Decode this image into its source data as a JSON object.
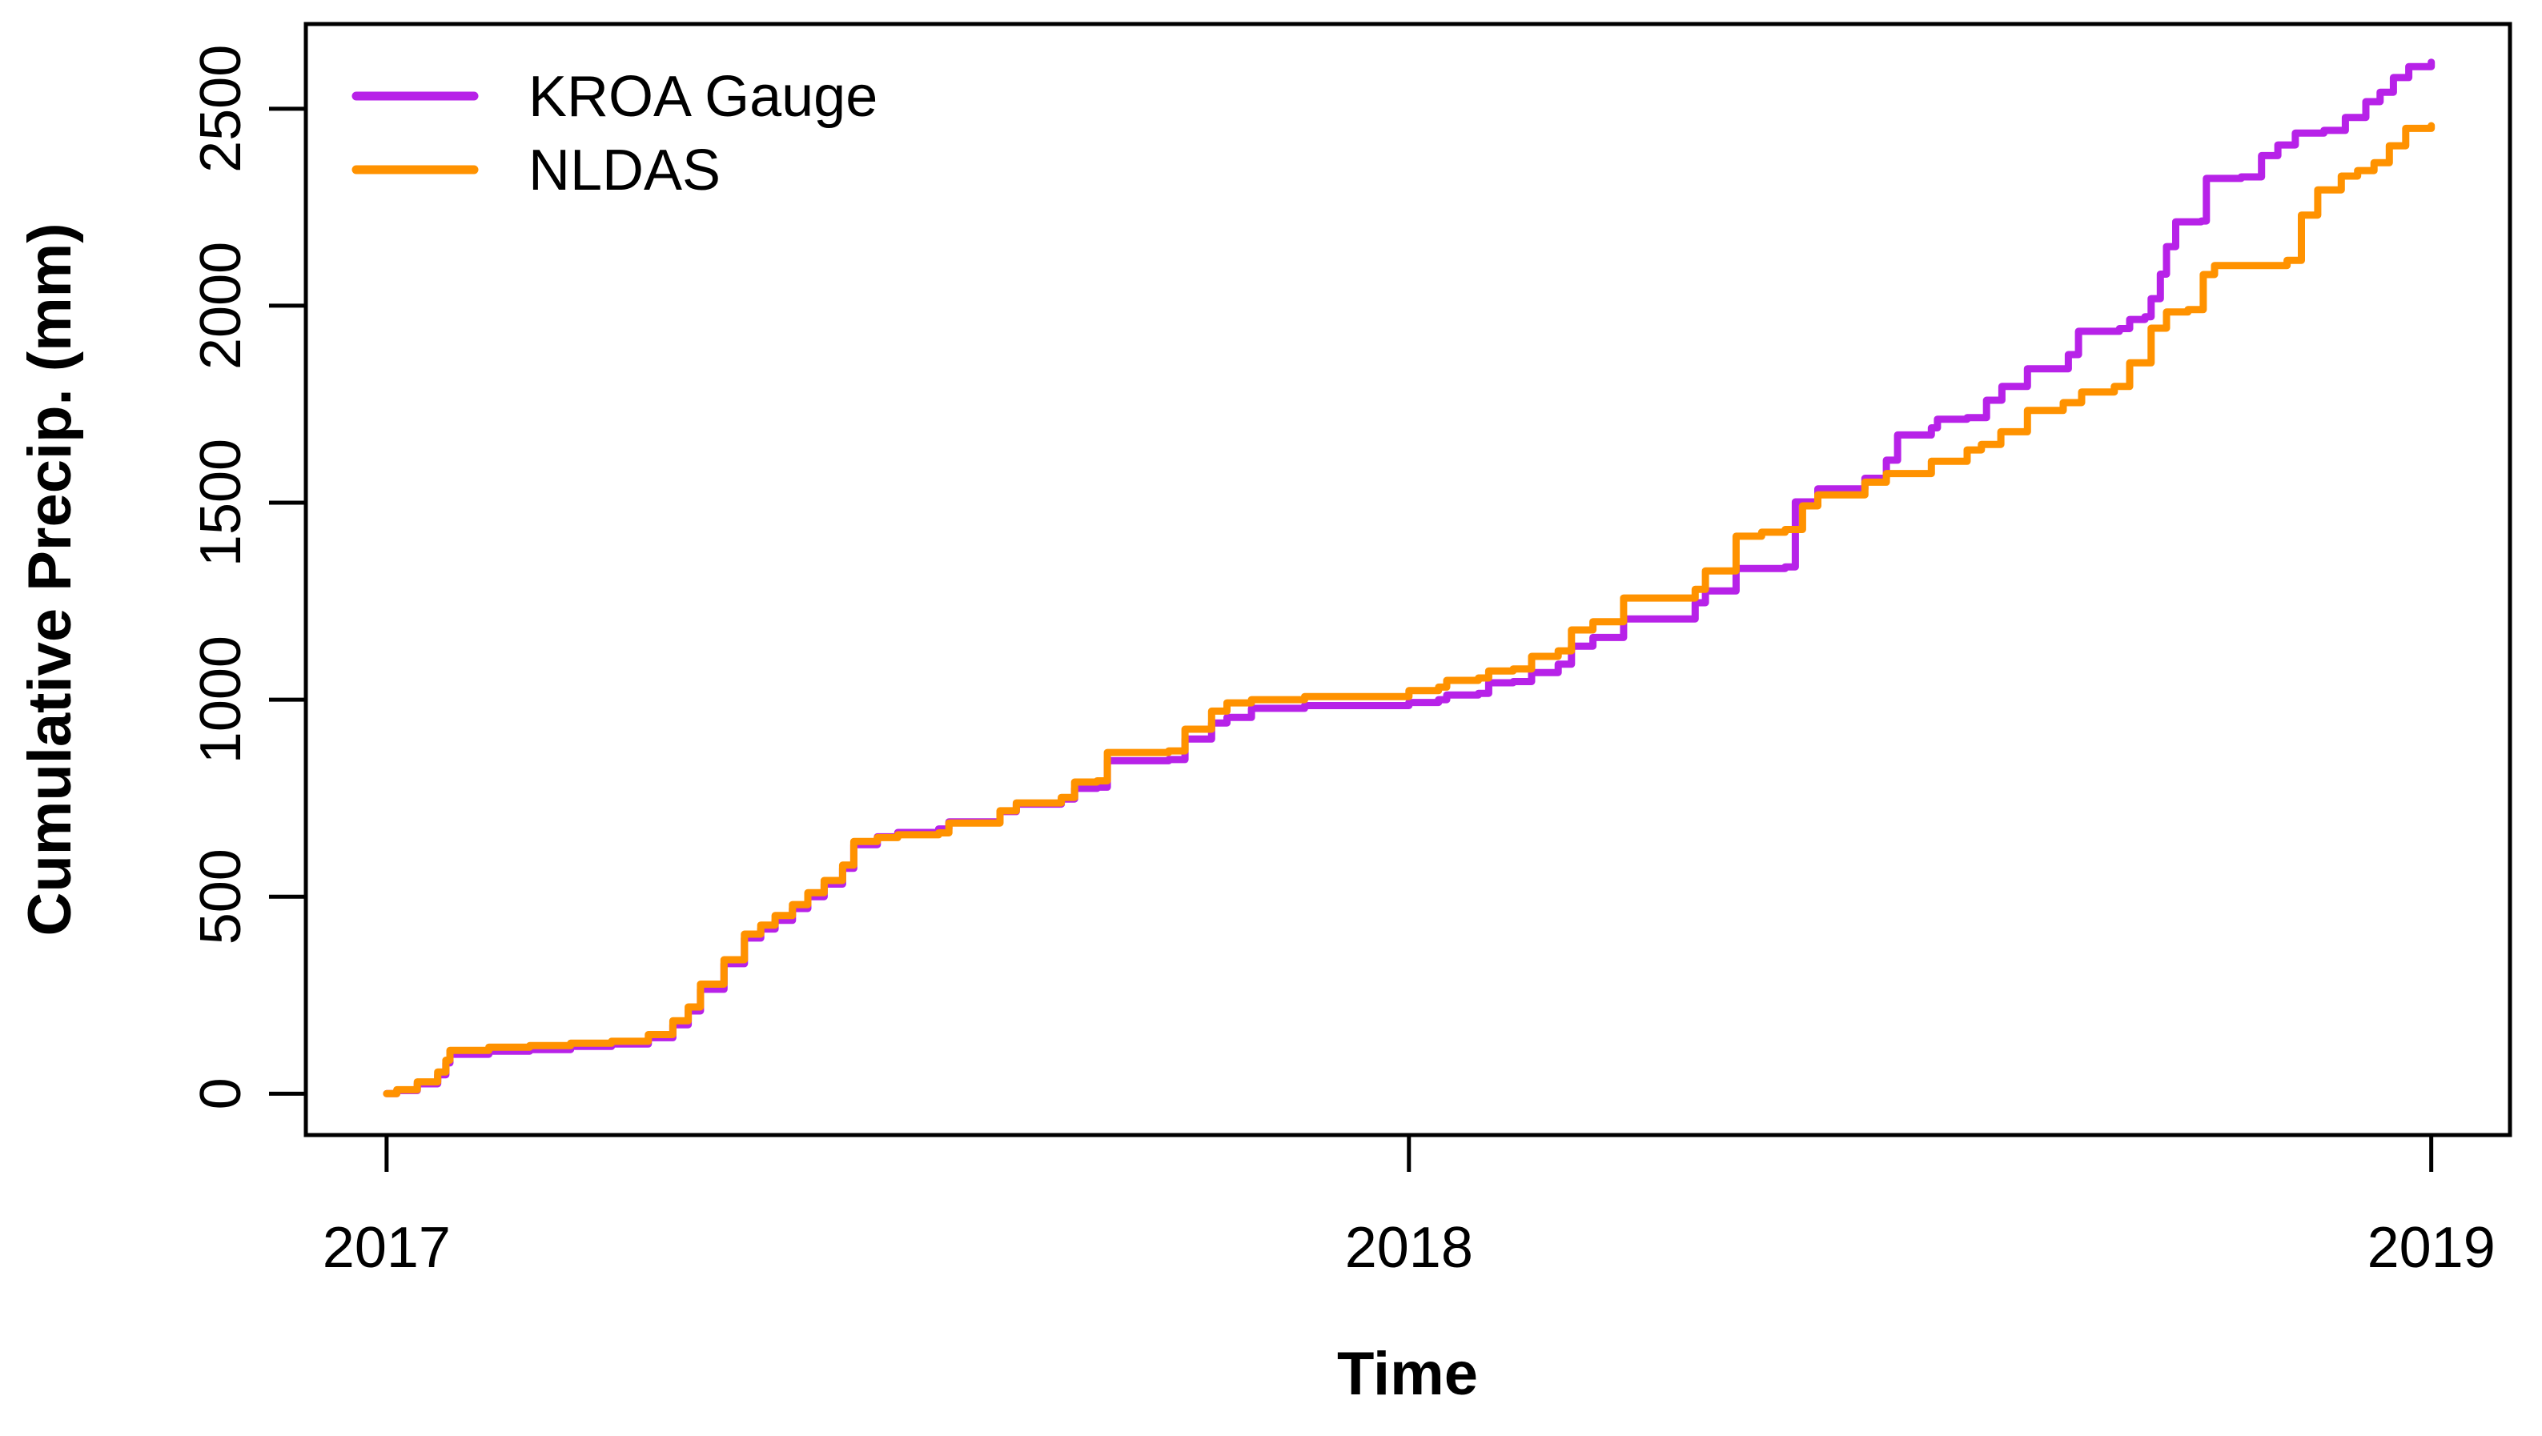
{
  "figure": {
    "background": "#ffffff",
    "axis_color": "#000000",
    "legend": {
      "position": "top-left",
      "entries": [
        {
          "label": "KROA Gauge",
          "color": "#b722e8"
        },
        {
          "label": "NLDAS",
          "color": "#ff9200"
        }
      ]
    }
  },
  "chart_data": {
    "type": "line",
    "title": "",
    "xlabel": "Time",
    "ylabel": "Cumulative Precip. (mm)",
    "x_range": [
      2016.921,
      2019.077
    ],
    "y_range": [
      -105,
      2715
    ],
    "x_ticks": [
      2017,
      2018,
      2019
    ],
    "x_tick_labels": [
      "2017",
      "2018",
      "2019"
    ],
    "y_ticks": [
      0,
      500,
      1000,
      1500,
      2000,
      2500
    ],
    "y_tick_labels": [
      "0",
      "500",
      "1000",
      "1500",
      "2000",
      "2500"
    ],
    "grid": false,
    "legend_position": "top-left",
    "line_style": "step-after",
    "series": [
      {
        "name": "KROA Gauge",
        "color": "#b722e8",
        "x": [
          2017.0,
          2017.01,
          2017.03,
          2017.05,
          2017.058,
          2017.062,
          2017.1,
          2017.14,
          2017.18,
          2017.22,
          2017.256,
          2017.28,
          2017.295,
          2017.307,
          2017.33,
          2017.35,
          2017.366,
          2017.38,
          2017.397,
          2017.412,
          2017.428,
          2017.446,
          2017.457,
          2017.48,
          2017.5,
          2017.54,
          2017.55,
          2017.6,
          2017.616,
          2017.66,
          2017.673,
          2017.695,
          2017.705,
          2017.765,
          2017.781,
          2017.807,
          2017.822,
          2017.846,
          2017.898,
          2018.0,
          2018.029,
          2018.037,
          2018.068,
          2018.078,
          2018.102,
          2018.12,
          2018.146,
          2018.159,
          2018.18,
          2018.21,
          2018.28,
          2018.29,
          2018.32,
          2018.368,
          2018.378,
          2018.4,
          2018.446,
          2018.467,
          2018.478,
          2018.511,
          2018.517,
          2018.546,
          2018.565,
          2018.58,
          2018.605,
          2018.645,
          2018.655,
          2018.695,
          2018.705,
          2018.72,
          2018.726,
          2018.735,
          2018.741,
          2018.75,
          2018.775,
          2018.78,
          2018.814,
          2018.834,
          2018.85,
          2018.867,
          2018.895,
          2018.916,
          2018.936,
          2018.95,
          2018.963,
          2018.978,
          2019.0
        ],
        "y": [
          0,
          8,
          25,
          48,
          78,
          100,
          108,
          112,
          120,
          126,
          142,
          175,
          210,
          265,
          330,
          395,
          418,
          440,
          470,
          500,
          532,
          572,
          632,
          652,
          663,
          672,
          690,
          716,
          735,
          748,
          775,
          778,
          845,
          848,
          900,
          941,
          955,
          978,
          985,
          993,
          1000,
          1012,
          1016,
          1043,
          1046,
          1069,
          1090,
          1136,
          1158,
          1205,
          1246,
          1276,
          1333,
          1337,
          1502,
          1535,
          1562,
          1608,
          1672,
          1690,
          1712,
          1716,
          1760,
          1795,
          1840,
          1876,
          1935,
          1942,
          1965,
          1972,
          2018,
          2080,
          2150,
          2213,
          2215,
          2323,
          2327,
          2381,
          2408,
          2438,
          2445,
          2478,
          2518,
          2542,
          2579,
          2607,
          2618
        ]
      },
      {
        "name": "NLDAS",
        "color": "#ff9200",
        "x": [
          2017.0,
          2017.01,
          2017.03,
          2017.05,
          2017.058,
          2017.062,
          2017.1,
          2017.14,
          2017.18,
          2017.22,
          2017.256,
          2017.28,
          2017.295,
          2017.307,
          2017.33,
          2017.35,
          2017.366,
          2017.38,
          2017.397,
          2017.412,
          2017.428,
          2017.446,
          2017.457,
          2017.48,
          2017.5,
          2017.54,
          2017.55,
          2017.6,
          2017.616,
          2017.66,
          2017.673,
          2017.695,
          2017.705,
          2017.765,
          2017.781,
          2017.807,
          2017.822,
          2017.846,
          2017.898,
          2018.0,
          2018.029,
          2018.037,
          2018.068,
          2018.078,
          2018.102,
          2018.12,
          2018.146,
          2018.159,
          2018.18,
          2018.21,
          2018.28,
          2018.29,
          2018.32,
          2018.345,
          2018.368,
          2018.385,
          2018.4,
          2018.446,
          2018.467,
          2018.511,
          2018.546,
          2018.56,
          2018.579,
          2018.605,
          2018.64,
          2018.658,
          2018.69,
          2018.705,
          2018.726,
          2018.741,
          2018.762,
          2018.777,
          2018.788,
          2018.859,
          2018.873,
          2018.889,
          2018.912,
          2018.928,
          2018.944,
          2018.959,
          2018.975,
          2019.0
        ],
        "y": [
          0,
          10,
          30,
          55,
          85,
          110,
          118,
          122,
          128,
          133,
          150,
          185,
          220,
          278,
          340,
          405,
          428,
          452,
          480,
          510,
          541,
          580,
          640,
          650,
          657,
          662,
          687,
          718,
          738,
          752,
          791,
          794,
          866,
          870,
          925,
          971,
          992,
          1000,
          1008,
          1023,
          1032,
          1049,
          1055,
          1073,
          1078,
          1110,
          1124,
          1177,
          1198,
          1258,
          1280,
          1327,
          1415,
          1425,
          1432,
          1492,
          1520,
          1552,
          1574,
          1605,
          1634,
          1648,
          1680,
          1734,
          1754,
          1781,
          1795,
          1855,
          1943,
          1984,
          1990,
          2079,
          2102,
          2115,
          2230,
          2294,
          2329,
          2343,
          2363,
          2406,
          2450,
          2457
        ]
      }
    ]
  }
}
